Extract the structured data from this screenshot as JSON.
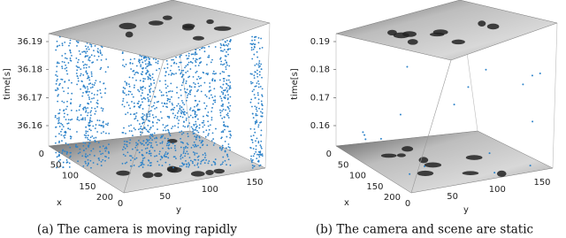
{
  "figure": {
    "panels": [
      {
        "caption": "(a) The camera is moving rapidly",
        "z_axis": {
          "label": "time[s]",
          "ticks": [
            36.16,
            36.17,
            36.18,
            36.19
          ]
        },
        "x_axis": {
          "label": "x",
          "ticks": [
            0,
            50,
            100,
            150,
            200
          ]
        },
        "y_axis": {
          "label": "y",
          "ticks": [
            0,
            50,
            100,
            150
          ]
        }
      },
      {
        "caption": "(b) The camera and scene are static",
        "z_axis": {
          "label": "time[s]",
          "ticks": [
            0.16,
            0.17,
            0.18,
            0.19
          ]
        },
        "x_axis": {
          "label": "x",
          "ticks": [
            0,
            50,
            100,
            150,
            200
          ]
        },
        "y_axis": {
          "label": "y",
          "ticks": [
            0,
            50,
            100,
            150
          ]
        }
      }
    ]
  }
}
